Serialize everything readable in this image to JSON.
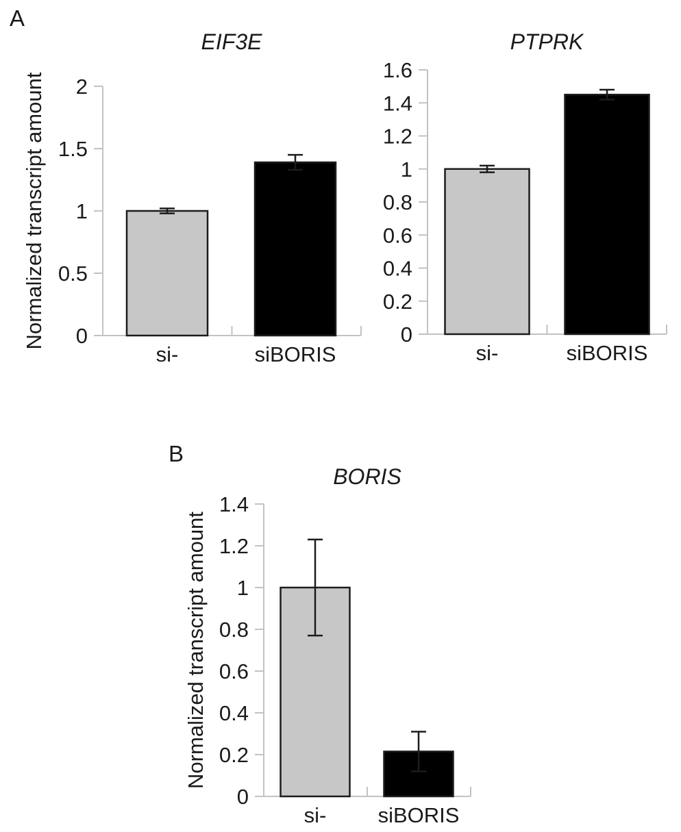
{
  "figure": {
    "panel_a_label": "A",
    "panel_b_label": "B",
    "background": "#ffffff",
    "text_color": "#1a1a1a",
    "axis_color": "#c2c2c2",
    "bar_border_color": "#1c1c1c",
    "error_bar_color": "#1c1c1c"
  },
  "chart_data": [
    {
      "id": "eif3e",
      "panel": "A",
      "type": "bar",
      "title": "EIF3E",
      "ylabel": "Normalized transcript amount",
      "xlabel": "",
      "categories": [
        "si-",
        "siBORIS"
      ],
      "values": [
        1.0,
        1.39
      ],
      "errors": [
        0.02,
        0.06
      ],
      "bar_fills": [
        "#c7c7c7",
        "#000000"
      ],
      "ylim": [
        0,
        2
      ],
      "yticks": [
        0,
        0.5,
        1,
        1.5,
        2
      ],
      "ytick_labels": [
        "0",
        "0.5",
        "1",
        "1.5",
        "2"
      ],
      "grid": false,
      "legend": "none"
    },
    {
      "id": "ptprk",
      "panel": "A",
      "type": "bar",
      "title": "PTPRK",
      "ylabel": null,
      "xlabel": "",
      "categories": [
        "si-",
        "siBORIS"
      ],
      "values": [
        1.0,
        1.45
      ],
      "errors": [
        0.02,
        0.03
      ],
      "bar_fills": [
        "#c7c7c7",
        "#000000"
      ],
      "ylim": [
        0,
        1.6
      ],
      "yticks": [
        0,
        0.2,
        0.4,
        0.6,
        0.8,
        1.0,
        1.2,
        1.4,
        1.6
      ],
      "ytick_labels": [
        "0",
        "0.2",
        "0.4",
        "0.6",
        "0.8",
        "1",
        "1.2",
        "1.4",
        "1.6"
      ],
      "grid": false,
      "legend": "none"
    },
    {
      "id": "boris",
      "panel": "B",
      "type": "bar",
      "title": "BORIS",
      "ylabel": "Normalized transcript amount",
      "xlabel": "",
      "categories": [
        "si-",
        "siBORIS"
      ],
      "values": [
        1.0,
        0.215
      ],
      "errors": [
        0.23,
        0.095
      ],
      "bar_fills": [
        "#c7c7c7",
        "#000000"
      ],
      "ylim": [
        0,
        1.4
      ],
      "yticks": [
        0,
        0.2,
        0.4,
        0.6,
        0.8,
        1.0,
        1.2,
        1.4
      ],
      "ytick_labels": [
        "0",
        "0.2",
        "0.4",
        "0.6",
        "0.8",
        "1",
        "1.2",
        "1.4"
      ],
      "grid": false,
      "legend": "none"
    }
  ]
}
